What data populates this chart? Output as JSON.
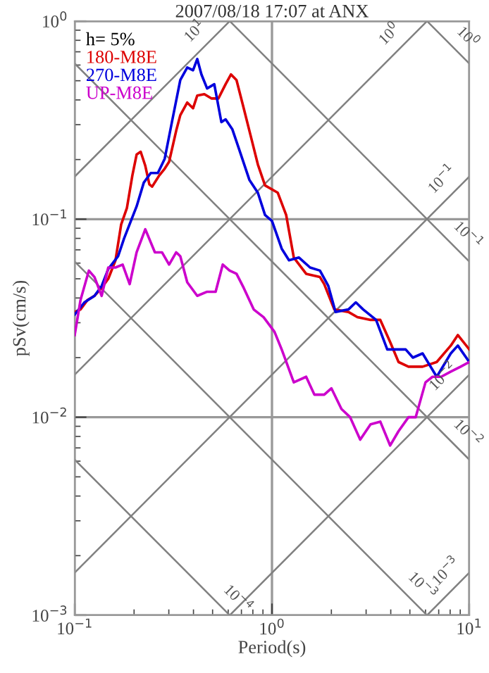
{
  "chart_data": {
    "type": "line",
    "title": "2007/08/18 17:07 at ANX",
    "xlabel": "Period(s)",
    "ylabel": "pSv(cm/s)",
    "legend_title": "h= 5%",
    "legend": "top left",
    "log": "xy",
    "grid": true,
    "line_style": "solid",
    "marker": "none",
    "xlim": [
      0.1,
      10
    ],
    "ylim": [
      0.001,
      1
    ],
    "xticks": [
      {
        "value": 0.1,
        "label": "10$^{−1}$"
      },
      {
        "value": 1,
        "label": "10$^{0}$"
      },
      {
        "value": 10,
        "label": "10$^{1}$"
      }
    ],
    "yticks": [
      {
        "value": 0.001,
        "label": "10$^{−3}$"
      },
      {
        "value": 0.01,
        "label": "10$^{−2}$"
      },
      {
        "value": 0.1,
        "label": "10$^{−1}$"
      },
      {
        "value": 1,
        "label": "10$^{0}$"
      }
    ],
    "series": [
      {
        "name": "180-M8E",
        "color": "#dd0000",
        "x": [
          0.1,
          0.107,
          0.116,
          0.126,
          0.137,
          0.148,
          0.161,
          0.172,
          0.184,
          0.196,
          0.206,
          0.216,
          0.228,
          0.239,
          0.247,
          0.268,
          0.286,
          0.301,
          0.327,
          0.343,
          0.372,
          0.398,
          0.418,
          0.454,
          0.493,
          0.535,
          0.582,
          0.62,
          0.661,
          0.719,
          0.781,
          0.848,
          0.922,
          1.07,
          1.18,
          1.29,
          1.49,
          1.75,
          1.84,
          2.07,
          2.44,
          2.71,
          3.16,
          3.54,
          3.97,
          4.38,
          4.92,
          5.8,
          6.84,
          8.06,
          8.75,
          10
        ],
        "values": [
          0.034,
          0.035,
          0.039,
          0.041,
          0.045,
          0.05,
          0.062,
          0.094,
          0.114,
          0.166,
          0.212,
          0.219,
          0.186,
          0.15,
          0.146,
          0.166,
          0.18,
          0.195,
          0.28,
          0.335,
          0.388,
          0.363,
          0.421,
          0.428,
          0.407,
          0.407,
          0.48,
          0.538,
          0.504,
          0.363,
          0.262,
          0.189,
          0.148,
          0.136,
          0.105,
          0.064,
          0.053,
          0.051,
          0.047,
          0.035,
          0.034,
          0.032,
          0.031,
          0.031,
          0.024,
          0.019,
          0.018,
          0.018,
          0.019,
          0.023,
          0.026,
          0.022
        ]
      },
      {
        "name": "270-M8E",
        "color": "#0000dd",
        "x": [
          0.1,
          0.112,
          0.126,
          0.137,
          0.148,
          0.166,
          0.178,
          0.206,
          0.224,
          0.243,
          0.264,
          0.286,
          0.311,
          0.343,
          0.372,
          0.398,
          0.418,
          0.439,
          0.469,
          0.51,
          0.554,
          0.582,
          0.63,
          0.684,
          0.768,
          0.848,
          0.922,
          1.0,
          1.12,
          1.22,
          1.37,
          1.56,
          1.75,
          1.93,
          2.1,
          2.44,
          2.66,
          2.9,
          3.37,
          3.84,
          4.31,
          4.76,
          5.18,
          5.8,
          6.84,
          8.06,
          8.75,
          10
        ],
        "values": [
          0.033,
          0.038,
          0.041,
          0.046,
          0.056,
          0.065,
          0.08,
          0.116,
          0.153,
          0.171,
          0.171,
          0.202,
          0.309,
          0.504,
          0.583,
          0.565,
          0.644,
          0.538,
          0.457,
          0.48,
          0.309,
          0.319,
          0.284,
          0.223,
          0.158,
          0.136,
          0.105,
          0.098,
          0.071,
          0.062,
          0.064,
          0.057,
          0.055,
          0.046,
          0.034,
          0.035,
          0.038,
          0.035,
          0.031,
          0.022,
          0.022,
          0.022,
          0.02,
          0.021,
          0.016,
          0.021,
          0.023,
          0.019
        ]
      },
      {
        "name": "UP-M8E",
        "color": "#cc00cc",
        "x": [
          0.1,
          0.107,
          0.118,
          0.126,
          0.137,
          0.148,
          0.161,
          0.175,
          0.19,
          0.206,
          0.228,
          0.255,
          0.277,
          0.301,
          0.327,
          0.343,
          0.372,
          0.418,
          0.469,
          0.518,
          0.563,
          0.61,
          0.661,
          0.719,
          0.808,
          0.907,
          1.03,
          1.12,
          1.29,
          1.49,
          1.64,
          1.84,
          2.0,
          2.25,
          2.49,
          2.8,
          3.16,
          3.54,
          3.97,
          4.38,
          4.92,
          5.35,
          6.0,
          6.51,
          7.2,
          8.06,
          9.04,
          10
        ],
        "values": [
          0.026,
          0.039,
          0.055,
          0.051,
          0.041,
          0.057,
          0.057,
          0.059,
          0.047,
          0.068,
          0.089,
          0.068,
          0.068,
          0.059,
          0.068,
          0.065,
          0.048,
          0.041,
          0.043,
          0.043,
          0.059,
          0.055,
          0.053,
          0.045,
          0.035,
          0.032,
          0.027,
          0.022,
          0.015,
          0.016,
          0.013,
          0.013,
          0.014,
          0.011,
          0.01,
          0.0077,
          0.0092,
          0.0095,
          0.0072,
          0.0085,
          0.01,
          0.01,
          0.015,
          0.016,
          0.016,
          0.017,
          0.018,
          0.019
        ]
      },
      {
        "color": "#808080",
        "x": [
          0.1,
          0.611
        ],
        "values": [
          0.164,
          1
        ]
      },
      {
        "color": "#808080",
        "x": [
          0.1,
          6.11
        ],
        "values": [
          0.0164,
          1
        ]
      },
      {
        "color": "#808080",
        "x": [
          0.1,
          10
        ],
        "values": [
          0.00164,
          0.164
        ]
      },
      {
        "color": "#808080",
        "x": [
          0.611,
          10
        ],
        "values": [
          0.001,
          0.0164
        ]
      },
      {
        "color": "#808080",
        "x": [
          6.11,
          10
        ],
        "values": [
          0.001,
          0.00164
        ]
      },
      {
        "color": "#808080",
        "x": [
          6.11,
          10
        ],
        "values": [
          1,
          0.611
        ]
      },
      {
        "color": "#808080",
        "x": [
          0.611,
          10
        ],
        "values": [
          1,
          0.0611
        ]
      },
      {
        "color": "#808080",
        "x": [
          0.1,
          10
        ],
        "values": [
          0.611,
          0.00611
        ]
      },
      {
        "color": "#808080",
        "x": [
          0.1,
          6.11
        ],
        "values": [
          0.0611,
          0.001
        ]
      },
      {
        "color": "#808080",
        "x": [
          0.1,
          0.611
        ],
        "values": [
          0.00611,
          0.001
        ]
      }
    ],
    "annotations": [
      {
        "text": "10$^{1}$",
        "x": 0.47,
        "y": 0.77
      },
      {
        "text": "10$^{0}$",
        "x": 4.55,
        "y": 0.745
      },
      {
        "text": "10$^{0}$",
        "x": 8.5,
        "y": 0.719
      },
      {
        "text": "10$^{−1}$",
        "x": 8.4,
        "y": 0.1375
      },
      {
        "text": "10$^{−1}$",
        "x": 8.5,
        "y": 0.0719
      },
      {
        "text": "10$^{−2}$",
        "x": 8.5,
        "y": 0.0139
      },
      {
        "text": "10$^{−2}$",
        "x": 8.5,
        "y": 0.00719
      },
      {
        "text": "10$^{−4}$",
        "x": 0.58,
        "y": 0.00105
      },
      {
        "text": "10$^{−3}$",
        "x": 5.0,
        "y": 0.00122
      },
      {
        "text": "10$^{−3}$",
        "x": 8.8,
        "y": 0.00144
      }
    ]
  }
}
